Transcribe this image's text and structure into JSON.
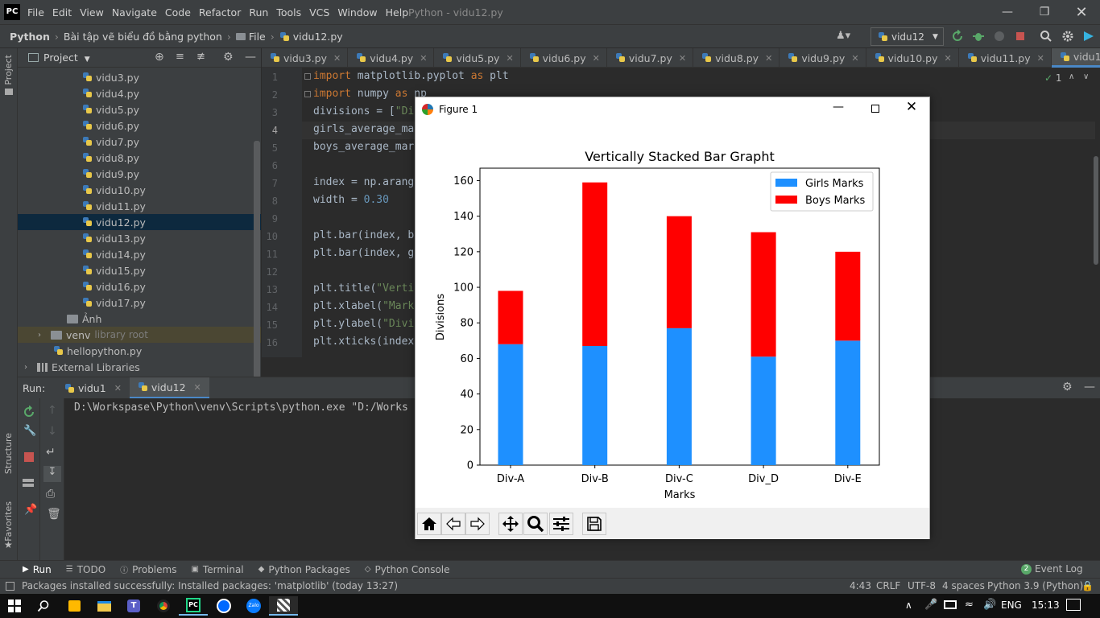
{
  "menubar": {
    "logo": "PC",
    "menus": [
      "File",
      "Edit",
      "View",
      "Navigate",
      "Code",
      "Refactor",
      "Run",
      "Tools",
      "VCS",
      "Window",
      "Help"
    ],
    "window_title": "Python - vidu12.py"
  },
  "navbar": {
    "breadcrumbs": [
      "Python",
      "Bài tập vẽ biểu đồ bằng python",
      "File",
      "vidu12.py"
    ],
    "run_config": "vidu12"
  },
  "side_labels": {
    "project": "Project",
    "structure": "Structure",
    "favorites": "Favorites"
  },
  "project_panel": {
    "title": "Project",
    "items": [
      {
        "label": "vidu3.py",
        "type": "py",
        "indent": 2
      },
      {
        "label": "vidu4.py",
        "type": "py",
        "indent": 2
      },
      {
        "label": "vidu5.py",
        "type": "py",
        "indent": 2
      },
      {
        "label": "vidu6.py",
        "type": "py",
        "indent": 2
      },
      {
        "label": "vidu7.py",
        "type": "py",
        "indent": 2
      },
      {
        "label": "vidu8.py",
        "type": "py",
        "indent": 2
      },
      {
        "label": "vidu9.py",
        "type": "py",
        "indent": 2
      },
      {
        "label": "vidu10.py",
        "type": "py",
        "indent": 2
      },
      {
        "label": "vidu11.py",
        "type": "py",
        "indent": 2
      },
      {
        "label": "vidu12.py",
        "type": "py",
        "indent": 2,
        "selected": true
      },
      {
        "label": "vidu13.py",
        "type": "py",
        "indent": 2
      },
      {
        "label": "vidu14.py",
        "type": "py",
        "indent": 2
      },
      {
        "label": "vidu15.py",
        "type": "py",
        "indent": 2
      },
      {
        "label": "vidu16.py",
        "type": "py",
        "indent": 2
      },
      {
        "label": "vidu17.py",
        "type": "py",
        "indent": 2
      },
      {
        "label": "Ảnh",
        "type": "folder",
        "indent": 1
      },
      {
        "label": "venv",
        "suffix": "library root",
        "type": "folder",
        "indent": 0,
        "expandable": true,
        "venv": true
      },
      {
        "label": "hellopython.py",
        "type": "py",
        "indent": 0
      },
      {
        "label": "External Libraries",
        "type": "lib",
        "indent": -1,
        "expandable": true
      }
    ]
  },
  "editor": {
    "tabs": [
      "vidu3.py",
      "vidu4.py",
      "vidu5.py",
      "vidu6.py",
      "vidu7.py",
      "vidu8.py",
      "vidu9.py",
      "vidu10.py",
      "vidu11.py",
      "vidu12.py"
    ],
    "active_tab": "vidu12.py",
    "inspection_count": "1",
    "line_numbers": [
      "1",
      "2",
      "3",
      "4",
      "5",
      "6",
      "7",
      "8",
      "9",
      "10",
      "11",
      "12",
      "13",
      "14",
      "15",
      "16"
    ],
    "lines": [
      [
        {
          "t": "import",
          "c": "kw"
        },
        {
          "t": " matplotlib.pyplot "
        },
        {
          "t": "as",
          "c": "kw"
        },
        {
          "t": " plt"
        }
      ],
      [
        {
          "t": "import",
          "c": "kw"
        },
        {
          "t": " numpy "
        },
        {
          "t": "as",
          "c": "kw"
        },
        {
          "t": " np"
        }
      ],
      [
        {
          "t": "divisions = ["
        },
        {
          "t": "\"Di",
          "c": "str"
        }
      ],
      [
        {
          "t": "girls_average_ma"
        }
      ],
      [
        {
          "t": "boys_average_mar"
        }
      ],
      [],
      [
        {
          "t": "index = np.arang"
        }
      ],
      [
        {
          "t": "width = "
        },
        {
          "t": "0.30",
          "c": "num"
        }
      ],
      [],
      [
        {
          "t": "plt.bar(index, b"
        }
      ],
      [
        {
          "t": "plt.bar(index, g"
        },
        {
          "t": "                                                  marks)"
        }
      ],
      [],
      [
        {
          "t": "plt.title("
        },
        {
          "t": "\"Verti",
          "c": "str"
        }
      ],
      [
        {
          "t": "plt.xlabel("
        },
        {
          "t": "\"Mark",
          "c": "str"
        }
      ],
      [
        {
          "t": "plt.ylabel("
        },
        {
          "t": "\"Divi",
          "c": "str"
        }
      ],
      [
        {
          "t": "plt.xticks(index"
        }
      ]
    ]
  },
  "run_panel": {
    "label": "Run:",
    "tabs": [
      "vidu1",
      "vidu12"
    ],
    "console_line": "D:\\Workspase\\Python\\venv\\Scripts\\python.exe \"D:/Works"
  },
  "tool_tabs": [
    "Run",
    "TODO",
    "Problems",
    "Terminal",
    "Python Packages",
    "Python Console"
  ],
  "event_log": {
    "count": "2",
    "label": "Event Log"
  },
  "status": {
    "message": "Packages installed successfully: Installed packages: 'matplotlib' (today 13:27)",
    "position": "4:43",
    "line_sep": "CRLF",
    "encoding": "UTF-8",
    "indent": "4 spaces",
    "interpreter": "Python 3.9 (Python)"
  },
  "taskbar": {
    "lang": "ENG",
    "time": "15:13"
  },
  "figure": {
    "window_title": "Figure 1",
    "chart_data": {
      "type": "bar",
      "stacked": true,
      "title": "Vertically Stacked Bar Grapht",
      "xlabel": "Marks",
      "ylabel": "Divisions",
      "categories": [
        "Div-A",
        "Div-B",
        "Div-C",
        "Div_D",
        "Div-E"
      ],
      "series": [
        {
          "name": "Girls Marks",
          "color": "#1e90ff",
          "values": [
            68,
            67,
            77,
            61,
            70
          ]
        },
        {
          "name": "Boys Marks",
          "color": "#ff0000",
          "values": [
            30,
            92,
            63,
            70,
            50
          ]
        }
      ],
      "ylim": [
        0,
        167
      ],
      "yticks": [
        0,
        20,
        40,
        60,
        80,
        100,
        120,
        140,
        160
      ],
      "legend": "top-right",
      "grid": false
    }
  }
}
